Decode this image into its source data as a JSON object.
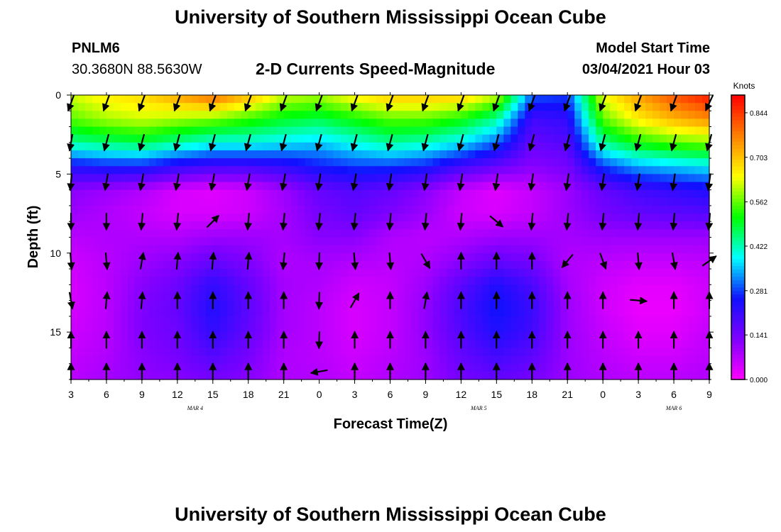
{
  "page": {
    "title_top": "University of Southern Mississippi Ocean Cube",
    "title_bottom": "University of Southern Mississippi Ocean Cube",
    "station_id": "PNLM6",
    "station_coords": "30.3680N 88.5630W",
    "plot_title": "2-D Currents Speed-Magnitude",
    "model_start_label": "Model Start Time",
    "model_start_value": "03/04/2021 Hour 03"
  },
  "chart_data": {
    "type": "heatmap",
    "title": "2-D Currents Speed-Magnitude",
    "xlabel": "Forecast Time(Z)",
    "ylabel": "Depth (ft)",
    "x_tick_labels": [
      "3",
      "6",
      "9",
      "12",
      "15",
      "18",
      "21",
      "0",
      "3",
      "6",
      "9",
      "12",
      "15",
      "18",
      "21",
      "0",
      "3",
      "6",
      "9"
    ],
    "x_hours_since_start": [
      0,
      3,
      6,
      9,
      12,
      15,
      18,
      21,
      24,
      27,
      30,
      33,
      36,
      39,
      42,
      45,
      48,
      51,
      54
    ],
    "date_labels": [
      {
        "text": "MAR 4",
        "at_hour": 10.5
      },
      {
        "text": "MAR 5",
        "at_hour": 34.5
      },
      {
        "text": "MAR 6",
        "at_hour": 51
      }
    ],
    "y_ticks": [
      0,
      5,
      10,
      15
    ],
    "ylim": [
      0,
      18
    ],
    "xlim": [
      0,
      54
    ],
    "colorbar": {
      "unit_label": "Knots",
      "tick_labels": [
        "0.000",
        "0.141",
        "0.281",
        "0.422",
        "0.562",
        "0.703",
        "0.844"
      ],
      "tick_values": [
        0.0,
        0.141,
        0.281,
        0.422,
        0.562,
        0.703,
        0.844
      ],
      "range": [
        0,
        0.9
      ],
      "colors": [
        "#ff00ff",
        "#8000ff",
        "#1010ff",
        "#00ffff",
        "#00ff00",
        "#ffff00",
        "#ff8000",
        "#ff0000"
      ]
    },
    "speed_rows": [
      {
        "depth": 0.0,
        "values": [
          0.62,
          0.66,
          0.68,
          0.74,
          0.8,
          0.72,
          0.62,
          0.6,
          0.66,
          0.7,
          0.7,
          0.7,
          0.62,
          0.3,
          0.28,
          0.64,
          0.74,
          0.82,
          0.88
        ]
      },
      {
        "depth": 1.5,
        "values": [
          0.56,
          0.6,
          0.62,
          0.6,
          0.58,
          0.54,
          0.5,
          0.48,
          0.52,
          0.56,
          0.56,
          0.52,
          0.44,
          0.2,
          0.22,
          0.56,
          0.66,
          0.72,
          0.76
        ]
      },
      {
        "depth": 3.0,
        "values": [
          0.44,
          0.46,
          0.48,
          0.44,
          0.4,
          0.4,
          0.38,
          0.36,
          0.4,
          0.44,
          0.42,
          0.38,
          0.3,
          0.16,
          0.18,
          0.44,
          0.52,
          0.56,
          0.58
        ]
      },
      {
        "depth": 4.5,
        "values": [
          0.24,
          0.26,
          0.26,
          0.22,
          0.2,
          0.2,
          0.22,
          0.26,
          0.28,
          0.28,
          0.26,
          0.2,
          0.16,
          0.12,
          0.14,
          0.28,
          0.34,
          0.36,
          0.38
        ]
      },
      {
        "depth": 6.0,
        "values": [
          0.12,
          0.1,
          0.08,
          0.04,
          0.03,
          0.05,
          0.1,
          0.16,
          0.18,
          0.16,
          0.12,
          0.06,
          0.03,
          0.06,
          0.1,
          0.16,
          0.2,
          0.22,
          0.24
        ]
      },
      {
        "depth": 7.5,
        "values": [
          0.1,
          0.08,
          0.06,
          0.04,
          0.04,
          0.05,
          0.09,
          0.14,
          0.16,
          0.13,
          0.1,
          0.05,
          0.04,
          0.06,
          0.1,
          0.14,
          0.16,
          0.17,
          0.18
        ]
      },
      {
        "depth": 9.0,
        "values": [
          0.07,
          0.08,
          0.08,
          0.08,
          0.1,
          0.1,
          0.09,
          0.12,
          0.12,
          0.08,
          0.07,
          0.08,
          0.1,
          0.1,
          0.09,
          0.1,
          0.1,
          0.1,
          0.1
        ]
      },
      {
        "depth": 10.5,
        "values": [
          0.05,
          0.07,
          0.1,
          0.12,
          0.16,
          0.13,
          0.08,
          0.09,
          0.08,
          0.07,
          0.08,
          0.12,
          0.16,
          0.14,
          0.08,
          0.07,
          0.06,
          0.06,
          0.07
        ]
      },
      {
        "depth": 12.0,
        "values": [
          0.04,
          0.07,
          0.12,
          0.15,
          0.22,
          0.16,
          0.09,
          0.08,
          0.05,
          0.06,
          0.1,
          0.17,
          0.24,
          0.19,
          0.09,
          0.05,
          0.03,
          0.03,
          0.05
        ]
      },
      {
        "depth": 13.5,
        "values": [
          0.04,
          0.07,
          0.13,
          0.16,
          0.24,
          0.17,
          0.09,
          0.07,
          0.04,
          0.06,
          0.11,
          0.19,
          0.26,
          0.21,
          0.1,
          0.05,
          0.02,
          0.02,
          0.05
        ]
      },
      {
        "depth": 15.0,
        "values": [
          0.05,
          0.07,
          0.13,
          0.15,
          0.22,
          0.16,
          0.09,
          0.07,
          0.04,
          0.06,
          0.11,
          0.18,
          0.24,
          0.2,
          0.1,
          0.06,
          0.03,
          0.03,
          0.06
        ]
      },
      {
        "depth": 16.5,
        "values": [
          0.06,
          0.08,
          0.12,
          0.14,
          0.18,
          0.14,
          0.08,
          0.07,
          0.05,
          0.07,
          0.1,
          0.16,
          0.2,
          0.17,
          0.1,
          0.07,
          0.05,
          0.05,
          0.07
        ]
      },
      {
        "depth": 18.0,
        "values": [
          0.07,
          0.09,
          0.11,
          0.12,
          0.14,
          0.12,
          0.08,
          0.08,
          0.06,
          0.08,
          0.1,
          0.14,
          0.16,
          0.14,
          0.1,
          0.08,
          0.07,
          0.07,
          0.08
        ]
      }
    ],
    "vector_depths": [
      0.5,
      3.0,
      5.5,
      8.0,
      10.5,
      13.0,
      15.5,
      17.5
    ],
    "vector_columns": [
      {
        "hour": 0,
        "angles_deg": [
          250,
          260,
          265,
          270,
          275,
          280,
          90,
          90
        ]
      },
      {
        "hour": 3,
        "angles_deg": [
          250,
          255,
          260,
          270,
          275,
          85,
          90,
          90
        ]
      },
      {
        "hour": 6,
        "angles_deg": [
          250,
          255,
          260,
          265,
          80,
          85,
          90,
          90
        ]
      },
      {
        "hour": 9,
        "angles_deg": [
          250,
          255,
          260,
          265,
          85,
          90,
          90,
          90
        ]
      },
      {
        "hour": 12,
        "angles_deg": [
          250,
          255,
          260,
          45,
          85,
          90,
          90,
          90
        ]
      },
      {
        "hour": 15,
        "angles_deg": [
          250,
          255,
          260,
          265,
          85,
          90,
          90,
          90
        ]
      },
      {
        "hour": 18,
        "angles_deg": [
          250,
          255,
          260,
          265,
          265,
          90,
          90,
          90
        ]
      },
      {
        "hour": 21,
        "angles_deg": [
          250,
          255,
          262,
          265,
          268,
          268,
          268,
          190
        ]
      },
      {
        "hour": 24,
        "angles_deg": [
          250,
          255,
          260,
          265,
          275,
          60,
          90,
          90
        ]
      },
      {
        "hour": 27,
        "angles_deg": [
          250,
          255,
          262,
          265,
          275,
          90,
          90,
          90
        ]
      },
      {
        "hour": 30,
        "angles_deg": [
          250,
          255,
          262,
          265,
          300,
          80,
          90,
          90
        ]
      },
      {
        "hour": 33,
        "angles_deg": [
          250,
          255,
          262,
          265,
          90,
          90,
          90,
          90
        ]
      },
      {
        "hour": 36,
        "angles_deg": [
          250,
          255,
          262,
          320,
          90,
          90,
          90,
          90
        ]
      },
      {
        "hour": 39,
        "angles_deg": [
          250,
          255,
          262,
          265,
          90,
          90,
          90,
          90
        ]
      },
      {
        "hour": 42,
        "angles_deg": [
          250,
          255,
          262,
          265,
          230,
          90,
          90,
          90
        ]
      },
      {
        "hour": 45,
        "angles_deg": [
          250,
          255,
          262,
          265,
          290,
          90,
          90,
          90
        ]
      },
      {
        "hour": 48,
        "angles_deg": [
          250,
          255,
          262,
          265,
          275,
          355,
          90,
          90
        ]
      },
      {
        "hour": 51,
        "angles_deg": [
          250,
          255,
          262,
          265,
          280,
          90,
          90,
          90
        ]
      },
      {
        "hour": 54,
        "angles_deg": [
          245,
          255,
          262,
          265,
          35,
          90,
          90,
          90
        ]
      }
    ]
  }
}
